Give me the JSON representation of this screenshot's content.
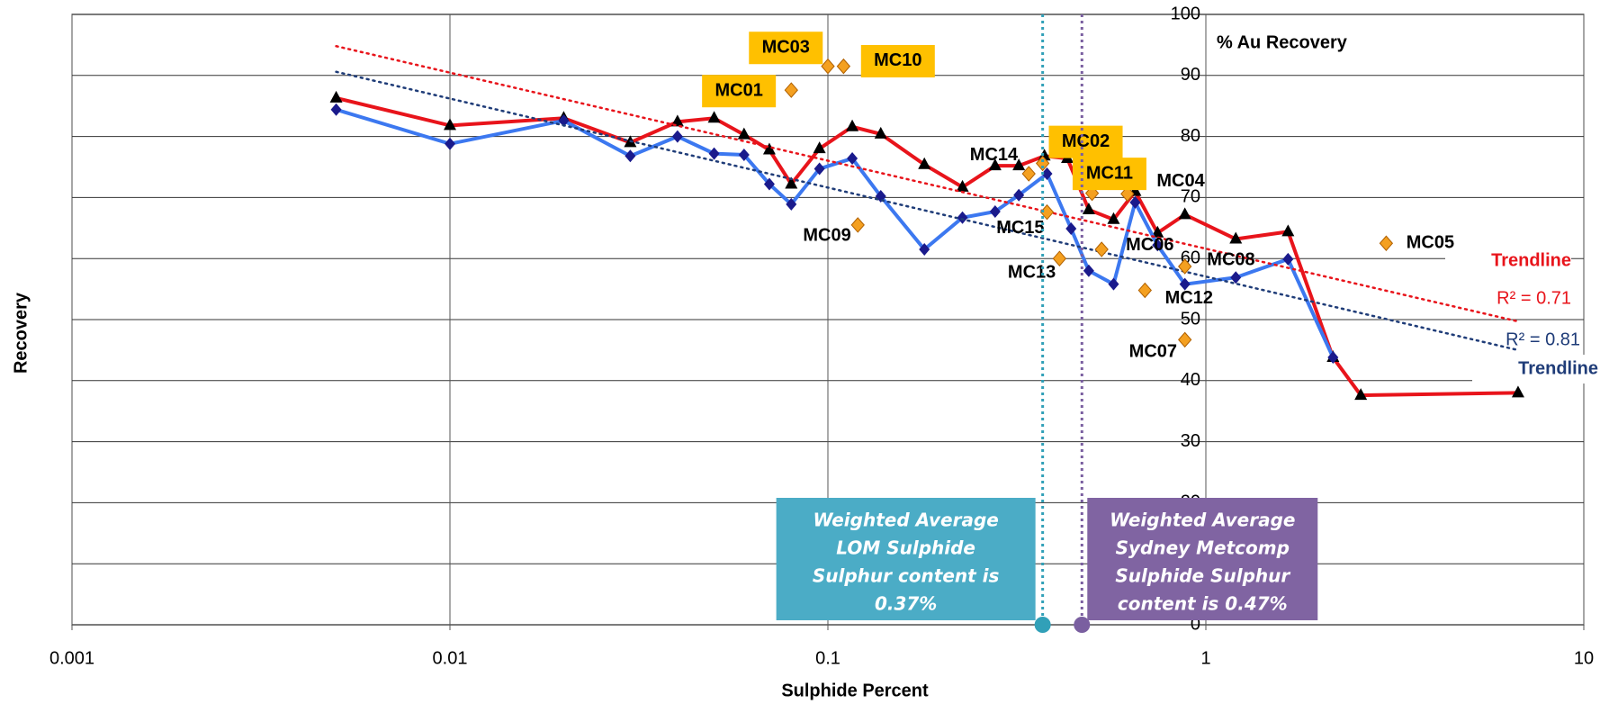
{
  "chart_data": {
    "type": "line",
    "x_label": "Sulphide Percent",
    "y_label": "Recovery",
    "xscale": "log",
    "xlim": [
      0.001,
      10
    ],
    "xticks": [
      0.001,
      0.01,
      0.1,
      1,
      10
    ],
    "ylim": [
      0,
      100
    ],
    "yticks": [
      0,
      10,
      20,
      30,
      40,
      50,
      60,
      70,
      80,
      90,
      100
    ],
    "grid": true,
    "series": [
      {
        "name": "Red",
        "color": "#e8141b",
        "marker": "triangle",
        "marker_color": "#000000",
        "x": [
          0.005,
          0.01,
          0.02,
          0.03,
          0.04,
          0.05,
          0.06,
          0.07,
          0.08,
          0.095,
          0.116,
          0.138,
          0.18,
          0.227,
          0.277,
          0.32,
          0.374,
          0.43,
          0.49,
          0.57,
          0.65,
          0.745,
          0.88,
          1.2,
          1.65,
          2.17,
          2.57,
          6.7
        ],
        "values": [
          86.3,
          81.8,
          83,
          79,
          82.4,
          83,
          80.3,
          77.8,
          72.2,
          78,
          81.6,
          80.4,
          75.4,
          71.7,
          75.2,
          75.2,
          76.8,
          76.4,
          68,
          66.4,
          71,
          64.2,
          67.2,
          63.2,
          64.4,
          43.8,
          37.6,
          38
        ]
      },
      {
        "name": "Blue",
        "color": "#3c78f0",
        "marker": "diamond",
        "marker_color": "#1a1a8c",
        "x": [
          0.005,
          0.01,
          0.02,
          0.03,
          0.04,
          0.05,
          0.06,
          0.07,
          0.08,
          0.095,
          0.116,
          0.138,
          0.18,
          0.227,
          0.277,
          0.32,
          0.38,
          0.44,
          0.49,
          0.57,
          0.65,
          0.745,
          0.88,
          1.2,
          1.65,
          2.17
        ],
        "values": [
          84.4,
          78.8,
          82.6,
          76.8,
          80,
          77.2,
          77,
          72.2,
          68.9,
          74.7,
          76.4,
          70.2,
          61.5,
          66.7,
          67.7,
          70.4,
          73.9,
          64.9,
          58,
          55.8,
          69.2,
          62.2,
          55.8,
          56.9,
          59.9,
          43.8
        ]
      },
      {
        "name": "Trendline",
        "color": "#e8141b",
        "dotted": true,
        "x": [
          0.005,
          6.7
        ],
        "values": [
          94.8,
          49.7
        ],
        "r2": "R² = 0.71"
      },
      {
        "name": "Trendline",
        "color": "#1f3c78",
        "dotted": true,
        "x": [
          0.005,
          6.7
        ],
        "values": [
          90.6,
          45
        ],
        "r2": "R² = 0.81"
      }
    ],
    "samples": {
      "color": "#f4a020",
      "names": [
        "MC01",
        "MC03",
        "MC10",
        "MC09",
        "MC14",
        "MC02",
        "MC15",
        "MC13",
        "MC11",
        "MC06",
        "MC04",
        "MC12",
        "MC08",
        "MC07",
        "MC05"
      ],
      "x": [
        0.08,
        0.1,
        0.11,
        0.12,
        0.34,
        0.37,
        0.38,
        0.41,
        0.5,
        0.53,
        0.62,
        0.69,
        0.88,
        0.88,
        3.0
      ],
      "values": [
        87.6,
        91.5,
        91.5,
        65.5,
        73.9,
        75.6,
        67.6,
        60,
        70.7,
        61.5,
        70.6,
        54.8,
        58.7,
        46.7,
        62.5
      ]
    },
    "axis_title": "% Au Recovery",
    "markers": [
      {
        "x": 0.37,
        "color": "#4bacc6",
        "line_color": "#31a0b8",
        "lines": [
          "Weighted Average",
          "LOM Sulphide",
          "Sulphur content is",
          "0.37%"
        ]
      },
      {
        "x": 0.47,
        "color": "#8064a2",
        "line_color": "#7a5fa0",
        "lines": [
          "Weighted Average",
          "Sydney Metcomp",
          "Sulphide Sulphur",
          "content is 0.47%"
        ]
      }
    ]
  }
}
